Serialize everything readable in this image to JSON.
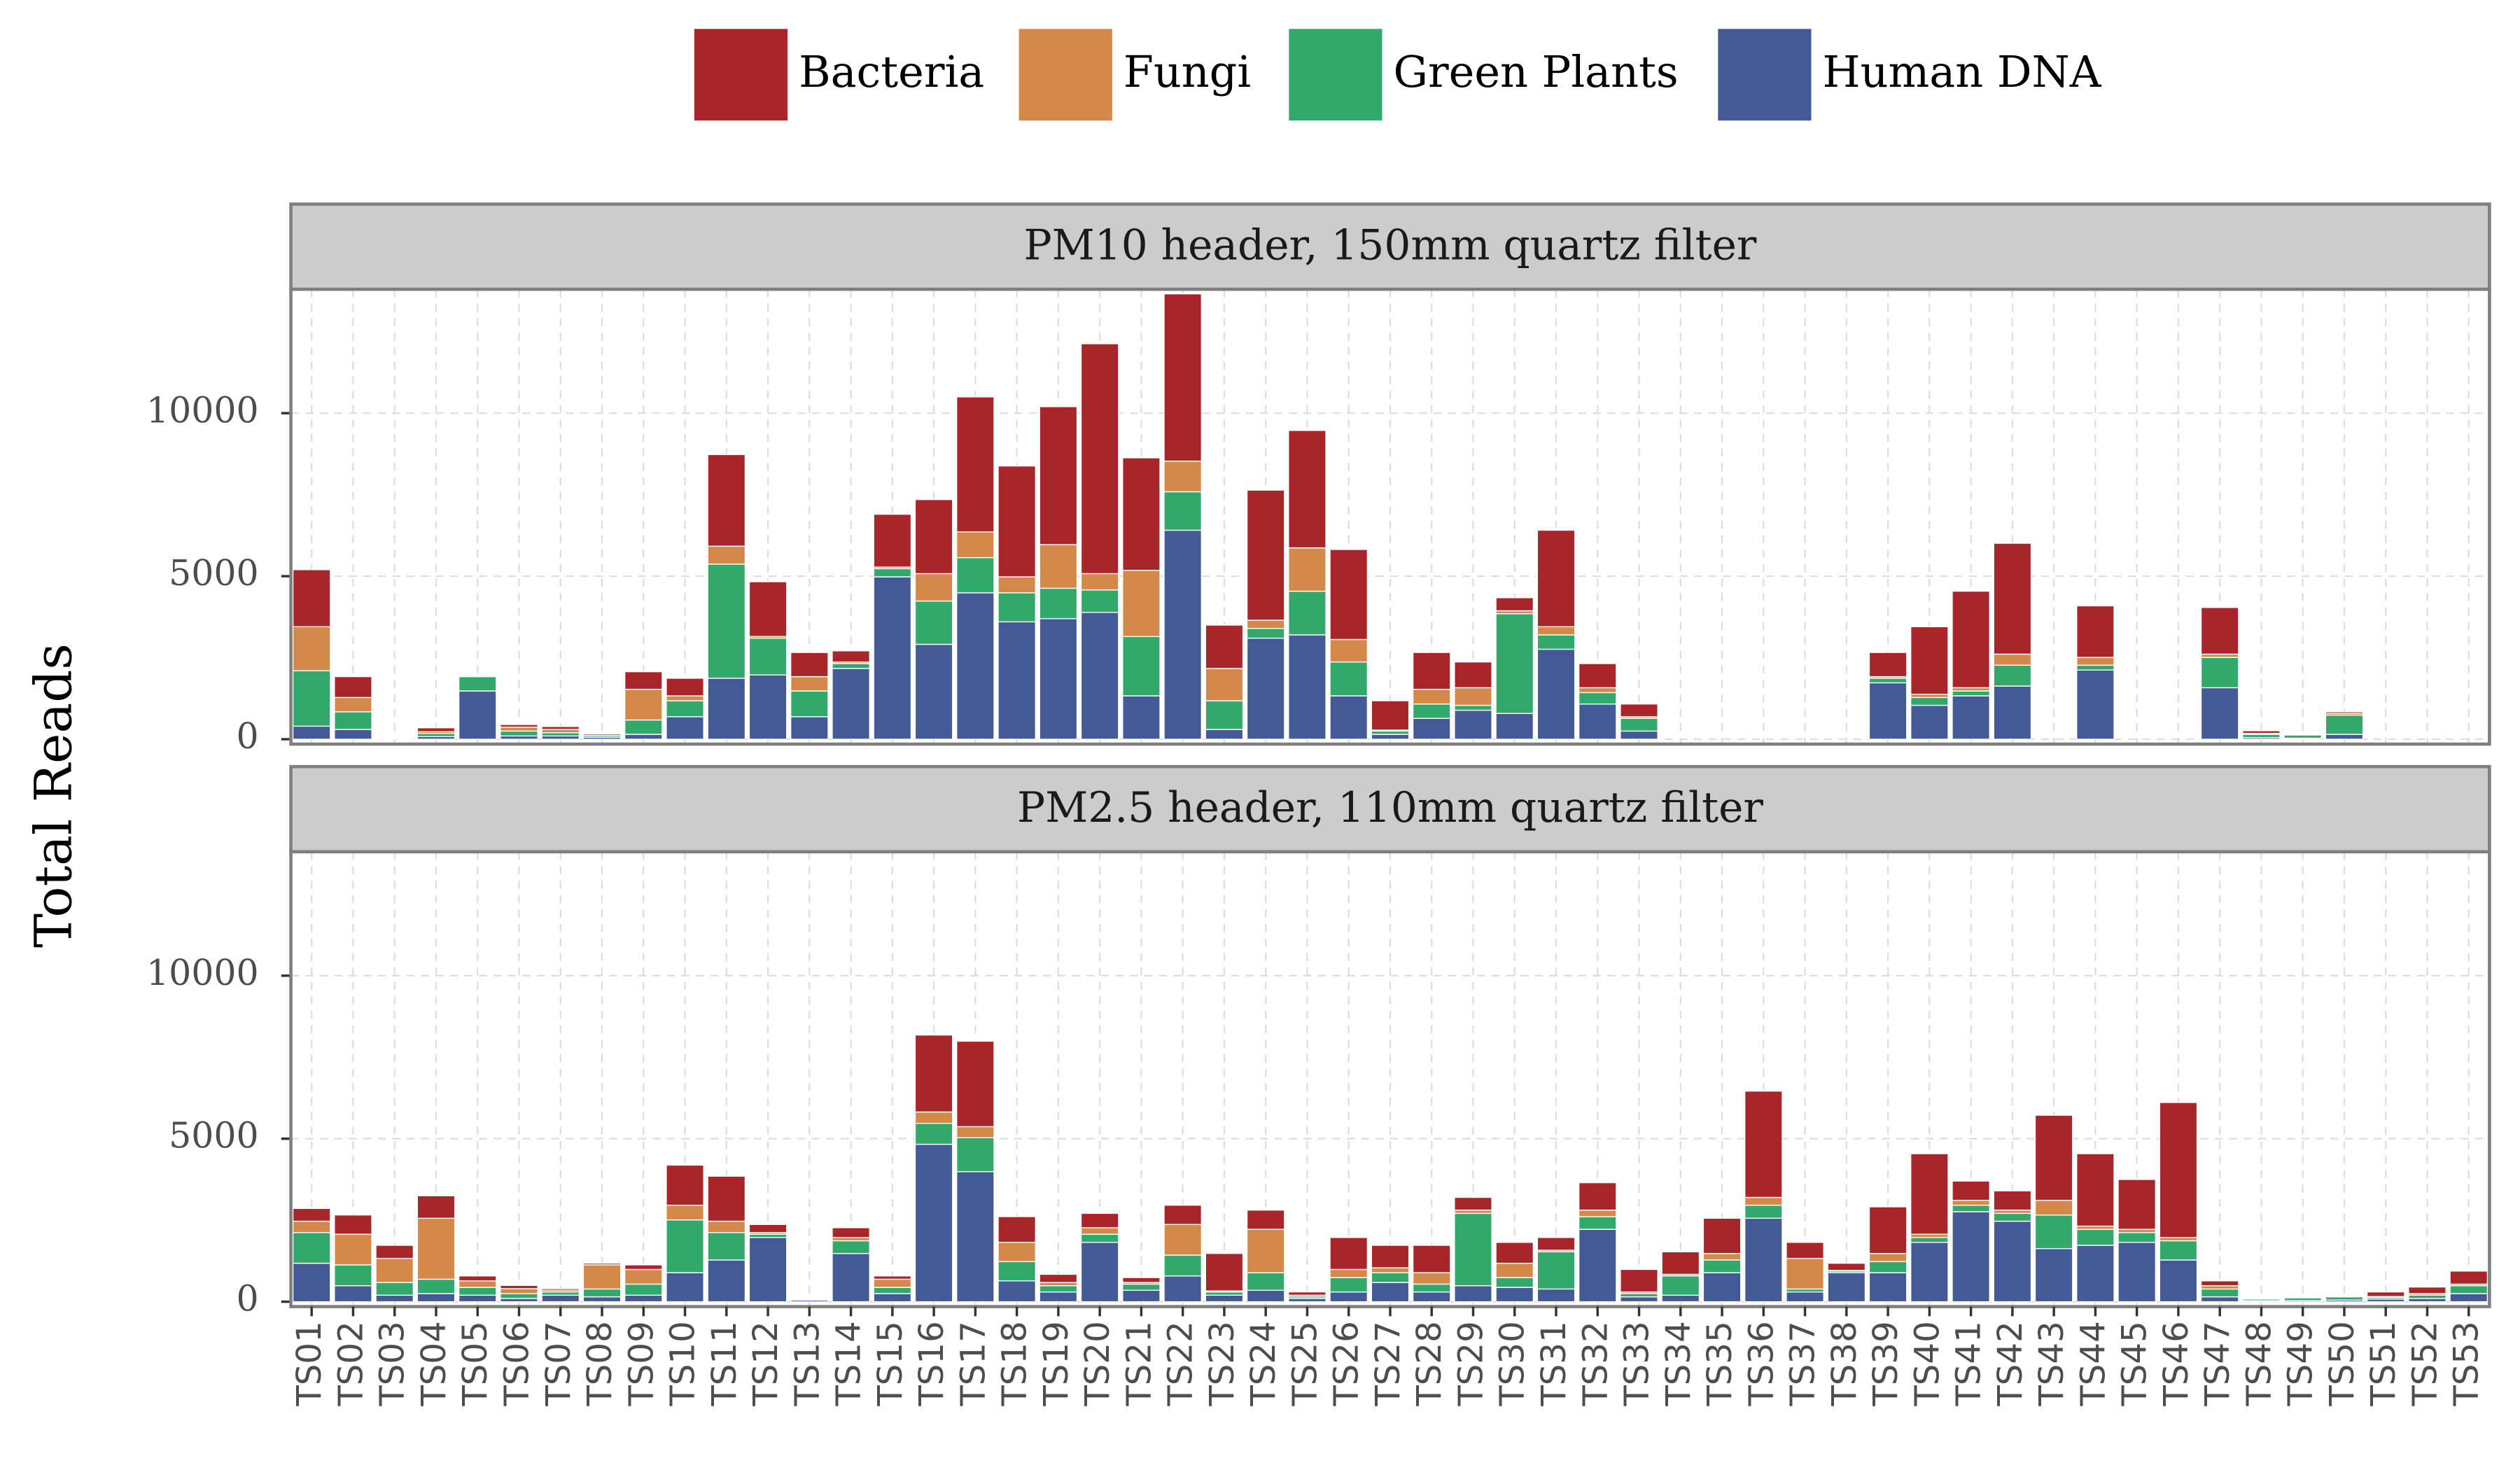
{
  "chart_data": {
    "type": "bar",
    "stacked": true,
    "ylabel": "Total Reads",
    "legend": "top",
    "grid": true,
    "ylim": [
      -150,
      13800
    ],
    "yticks": [
      0,
      5000,
      10000
    ],
    "facets": [
      "PM10 header, 150mm quartz filter",
      "PM2.5 header, 110mm quartz filter"
    ],
    "categories": [
      "TS01",
      "TS02",
      "TS03",
      "TS04",
      "TS05",
      "TS06",
      "TS07",
      "TS08",
      "TS09",
      "TS10",
      "TS11",
      "TS12",
      "TS13",
      "TS14",
      "TS15",
      "TS16",
      "TS17",
      "TS18",
      "TS19",
      "TS20",
      "TS21",
      "TS22",
      "TS23",
      "TS24",
      "TS25",
      "TS26",
      "TS27",
      "TS28",
      "TS29",
      "TS30",
      "TS31",
      "TS32",
      "TS33",
      "TS34",
      "TS35",
      "TS36",
      "TS37",
      "TS38",
      "TS39",
      "TS40",
      "TS41",
      "TS42",
      "TS43",
      "TS44",
      "TS45",
      "TS46",
      "TS47",
      "TS48",
      "TS49",
      "TS50",
      "TS51",
      "TS52",
      "TS53"
    ],
    "series": [
      {
        "name": "Bacteria",
        "color": "#a8262a",
        "values": [
          [
            1750,
            640,
            10,
            120,
            30,
            80,
            90,
            30,
            540,
            540,
            2810,
            1680,
            740,
            340,
            1620,
            2270,
            4140,
            3400,
            4230,
            7050,
            3450,
            5130,
            1330,
            3990,
            3600,
            2760,
            900,
            1130,
            790,
            400,
            2960,
            740,
            390,
            0,
            0,
            0,
            0,
            0,
            740,
            2070,
            2960,
            3400,
            0,
            1580,
            0,
            0,
            1430,
            80,
            10,
            50,
            0,
            0,
            0
          ],
          [
            390,
            590,
            400,
            690,
            150,
            100,
            50,
            50,
            140,
            1230,
            1380,
            250,
            20,
            300,
            100,
            2360,
            2620,
            790,
            250,
            440,
            150,
            590,
            1150,
            590,
            100,
            980,
            690,
            840,
            390,
            640,
            390,
            840,
            690,
            690,
            1080,
            3260,
            490,
            220,
            1430,
            2470,
            590,
            590,
            2610,
            2220,
            1530,
            4140,
            150,
            10,
            20,
            30,
            140,
            200,
            400
          ]
        ]
      },
      {
        "name": "Fungi",
        "color": "#d4884a",
        "values": [
          [
            1350,
            440,
            10,
            50,
            20,
            120,
            100,
            60,
            940,
            150,
            550,
            50,
            440,
            50,
            50,
            840,
            790,
            490,
            1340,
            500,
            2030,
            940,
            990,
            250,
            1330,
            690,
            30,
            450,
            540,
            90,
            250,
            150,
            50,
            0,
            0,
            0,
            0,
            0,
            50,
            100,
            100,
            340,
            0,
            240,
            0,
            0,
            100,
            30,
            10,
            50,
            0,
            0,
            0
          ],
          [
            350,
            940,
            740,
            1870,
            200,
            150,
            50,
            740,
            450,
            450,
            350,
            50,
            10,
            100,
            250,
            350,
            340,
            590,
            100,
            200,
            50,
            940,
            30,
            1330,
            50,
            250,
            150,
            350,
            100,
            440,
            50,
            200,
            50,
            50,
            200,
            240,
            940,
            20,
            250,
            100,
            150,
            100,
            450,
            100,
            100,
            100,
            100,
            10,
            10,
            20,
            30,
            50,
            50
          ]
        ]
      },
      {
        "name": "Green Plants",
        "color": "#33a86b",
        "values": [
          [
            1700,
            540,
            20,
            100,
            440,
            150,
            100,
            50,
            440,
            490,
            3500,
            1130,
            790,
            150,
            250,
            1330,
            1080,
            890,
            930,
            690,
            1820,
            1180,
            880,
            300,
            1340,
            1040,
            100,
            440,
            150,
            3060,
            440,
            350,
            390,
            0,
            0,
            0,
            0,
            0,
            140,
            240,
            150,
            640,
            0,
            150,
            0,
            0,
            930,
            100,
            100,
            590,
            0,
            0,
            0
          ],
          [
            940,
            640,
            390,
            440,
            240,
            150,
            100,
            240,
            340,
            1620,
            840,
            100,
            20,
            390,
            190,
            640,
            1040,
            590,
            190,
            250,
            190,
            640,
            100,
            540,
            50,
            440,
            300,
            240,
            2220,
            300,
            1140,
            390,
            100,
            590,
            390,
            400,
            90,
            50,
            340,
            150,
            200,
            240,
            1030,
            490,
            300,
            590,
            240,
            50,
            80,
            100,
            50,
            100,
            240
          ]
        ]
      },
      {
        "name": "Human DNA",
        "color": "#435a97",
        "values": [
          [
            400,
            300,
            20,
            80,
            1480,
            100,
            100,
            60,
            150,
            690,
            1870,
            1970,
            690,
            2170,
            4980,
            2910,
            4490,
            3600,
            3700,
            3890,
            1330,
            6410,
            300,
            3100,
            3200,
            1330,
            150,
            640,
            890,
            790,
            2760,
            1080,
            250,
            0,
            0,
            0,
            0,
            0,
            1730,
            1040,
            1330,
            1630,
            0,
            2120,
            0,
            0,
            1580,
            50,
            30,
            150,
            0,
            0,
            0
          ],
          [
            1180,
            490,
            200,
            250,
            200,
            100,
            200,
            150,
            200,
            890,
            1280,
            1970,
            50,
            1480,
            250,
            4830,
            3990,
            640,
            300,
            1820,
            350,
            790,
            200,
            350,
            100,
            300,
            590,
            300,
            490,
            440,
            390,
            2220,
            150,
            200,
            890,
            2560,
            300,
            890,
            890,
            1820,
            2760,
            2470,
            1630,
            1730,
            1820,
            1280,
            150,
            30,
            40,
            50,
            80,
            100,
            250
          ]
        ]
      }
    ]
  }
}
